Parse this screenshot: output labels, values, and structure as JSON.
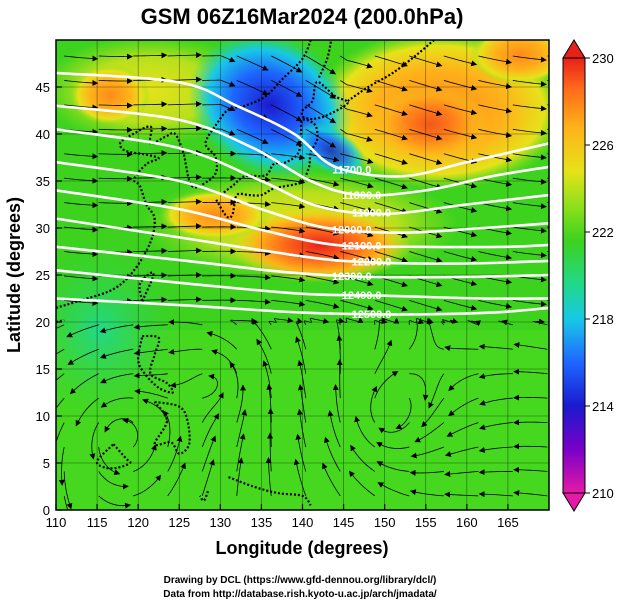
{
  "title": "GSM 06Z16Mar2024 (200.0hPa)",
  "x_axis": {
    "label": "Longitude (degrees)",
    "ticks": [
      "110",
      "115",
      "120",
      "125",
      "130",
      "135",
      "140",
      "145",
      "150",
      "155",
      "160",
      "165"
    ]
  },
  "y_axis": {
    "label": "Latitude (degrees)",
    "ticks": [
      "0",
      "5",
      "10",
      "15",
      "20",
      "25",
      "30",
      "35",
      "40",
      "45"
    ]
  },
  "colorbar": {
    "ticks": [
      "210",
      "214",
      "218",
      "222",
      "226",
      "230"
    ],
    "colors": [
      "#e51aa6",
      "#7a00c8",
      "#1a1acf",
      "#1e66ff",
      "#18c8e6",
      "#22d88a",
      "#3cd21e",
      "#8ee01c",
      "#e6e21a",
      "#ffb21a",
      "#ff6a1a",
      "#e8201a"
    ]
  },
  "contour_labels": [
    "11700.0",
    "11800.0",
    "11900.0",
    "12000.0",
    "12100.0",
    "12200.0",
    "12300.0",
    "12400.0",
    "12500.0"
  ],
  "credits": {
    "line1": "Drawing by DCL (https://www.gfd-dennou.org/library/dcl/)",
    "line2": "Data from http://database.rish.kyoto-u.ac.jp/arch/jmadata/"
  },
  "chart_data": {
    "type": "heatmap",
    "title": "GSM 06Z16Mar2024 (200.0hPa)",
    "xlabel": "Longitude (degrees)",
    "ylabel": "Latitude (degrees)",
    "xlim": [
      110,
      170
    ],
    "ylim": [
      0,
      50
    ],
    "x_ticks": [
      110,
      115,
      120,
      125,
      130,
      135,
      140,
      145,
      150,
      155,
      160,
      165
    ],
    "y_ticks": [
      0,
      5,
      10,
      15,
      20,
      25,
      30,
      35,
      40,
      45
    ],
    "colorbar_range": [
      210,
      230
    ],
    "colorbar_ticks": [
      210,
      214,
      218,
      222,
      226,
      230
    ],
    "overlays": [
      "temperature shading",
      "geopotential height contours (white)",
      "wind streamlines with arrows",
      "coastlines"
    ],
    "contours": [
      {
        "level": 11700,
        "points": [
          [
            110,
            46.5
          ],
          [
            125,
            45.5
          ],
          [
            132,
            43
          ],
          [
            139,
            40
          ],
          [
            144,
            36.5
          ],
          [
            152,
            35.5
          ],
          [
            160,
            37
          ],
          [
            170,
            39
          ]
        ]
      },
      {
        "level": 11800,
        "points": [
          [
            110,
            43
          ],
          [
            125,
            41.5
          ],
          [
            134,
            38.5
          ],
          [
            141,
            35
          ],
          [
            147,
            33.5
          ],
          [
            155,
            34
          ],
          [
            163,
            35.5
          ],
          [
            170,
            36.5
          ]
        ]
      },
      {
        "level": 11900,
        "points": [
          [
            110,
            40.5
          ],
          [
            125,
            38.5
          ],
          [
            135,
            35
          ],
          [
            142,
            32.3
          ],
          [
            150,
            31.5
          ],
          [
            160,
            32.5
          ],
          [
            170,
            33.5
          ]
        ]
      },
      {
        "level": 12000,
        "points": [
          [
            110,
            37
          ],
          [
            125,
            35
          ],
          [
            135,
            32
          ],
          [
            143,
            30
          ],
          [
            152,
            29.5
          ],
          [
            162,
            30
          ],
          [
            170,
            30.5
          ]
        ]
      },
      {
        "level": 12100,
        "points": [
          [
            110,
            34
          ],
          [
            125,
            32
          ],
          [
            135,
            29.8
          ],
          [
            144,
            28.2
          ],
          [
            154,
            28
          ],
          [
            165,
            28
          ],
          [
            170,
            28.2
          ]
        ]
      },
      {
        "level": 12200,
        "points": [
          [
            110,
            31
          ],
          [
            125,
            29
          ],
          [
            136,
            27.5
          ],
          [
            145,
            26.5
          ],
          [
            158,
            26.2
          ],
          [
            170,
            26.5
          ]
        ]
      },
      {
        "level": 12300,
        "points": [
          [
            110,
            28
          ],
          [
            126,
            26.5
          ],
          [
            138,
            25.3
          ],
          [
            148,
            24.8
          ],
          [
            160,
            24.8
          ],
          [
            170,
            25
          ]
        ]
      },
      {
        "level": 12400,
        "points": [
          [
            110,
            25.5
          ],
          [
            127,
            24
          ],
          [
            140,
            23
          ],
          [
            150,
            22.8
          ],
          [
            162,
            22.5
          ],
          [
            170,
            22.5
          ]
        ]
      },
      {
        "level": 12500,
        "points": [
          [
            110,
            22.5
          ],
          [
            125,
            21.8
          ],
          [
            140,
            21
          ],
          [
            152,
            20.8
          ],
          [
            163,
            21
          ],
          [
            170,
            21.5
          ]
        ]
      }
    ]
  }
}
